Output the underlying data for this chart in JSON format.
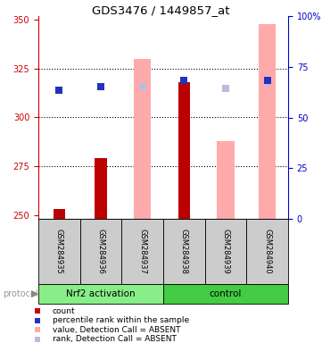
{
  "title": "GDS3476 / 1449857_at",
  "samples": [
    "GSM284935",
    "GSM284936",
    "GSM284937",
    "GSM284938",
    "GSM284939",
    "GSM284940"
  ],
  "ylim_left": [
    248,
    352
  ],
  "ylim_right": [
    0,
    100
  ],
  "yticks_left": [
    250,
    275,
    300,
    325,
    350
  ],
  "yticks_right": [
    0,
    25,
    50,
    75,
    100
  ],
  "ytick_labels_right": [
    "0",
    "25",
    "50",
    "75",
    "100%"
  ],
  "red_bars": [
    253,
    279,
    null,
    318,
    null,
    null
  ],
  "bar_bottom": 248,
  "pink_bars": [
    null,
    null,
    330,
    null,
    288,
    348
  ],
  "blue_squares": [
    314,
    316,
    null,
    319,
    null,
    319
  ],
  "lavender_squares": [
    null,
    null,
    316,
    null,
    315,
    318
  ],
  "grid_lines": [
    275,
    300,
    325
  ],
  "colors": {
    "red_bar": "#bb0000",
    "pink_bar": "#ffaaaa",
    "blue_square": "#2233bb",
    "lavender_square": "#bbbbdd",
    "left_axis": "#cc0000",
    "right_axis": "#0000cc",
    "sample_box_bg": "#cccccc",
    "group_nrf2_bg": "#88ee88",
    "group_ctrl_bg": "#44cc44",
    "protocol_text": "#999999",
    "protocol_arrow": "#888888"
  },
  "group_labels": [
    "Nrf2 activation",
    "control"
  ],
  "group_split": 3,
  "legend_items": [
    {
      "color": "#cc0000",
      "label": "count"
    },
    {
      "color": "#2233bb",
      "label": "percentile rank within the sample"
    },
    {
      "color": "#ffaaaa",
      "label": "value, Detection Call = ABSENT"
    },
    {
      "color": "#bbbbdd",
      "label": "rank, Detection Call = ABSENT"
    }
  ]
}
